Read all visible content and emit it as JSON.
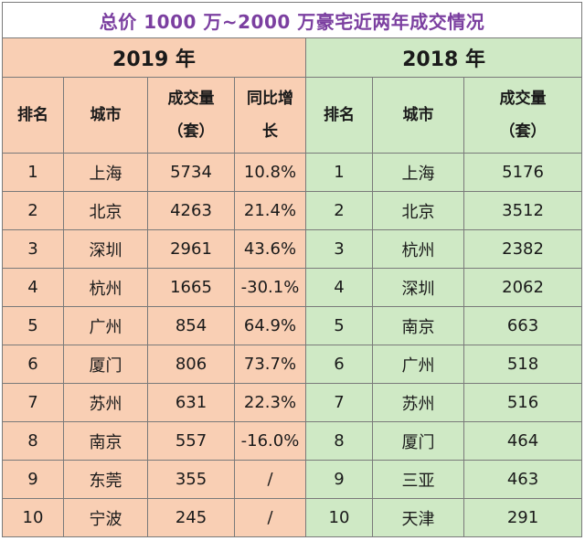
{
  "title": "总价 1000 万~2000 万豪宅近两年成交情况",
  "left": {
    "year": "2019 年",
    "headers": {
      "rank": "排名",
      "city": "城市",
      "volume_line1": "成交量",
      "volume_line2": "（套）",
      "yoy_line1": "同比增",
      "yoy_line2": "长"
    },
    "rows": [
      {
        "rank": "1",
        "city": "上海",
        "volume": "5734",
        "yoy": "10.8%"
      },
      {
        "rank": "2",
        "city": "北京",
        "volume": "4263",
        "yoy": "21.4%"
      },
      {
        "rank": "3",
        "city": "深圳",
        "volume": "2961",
        "yoy": "43.6%"
      },
      {
        "rank": "4",
        "city": "杭州",
        "volume": "1665",
        "yoy": "-30.1%"
      },
      {
        "rank": "5",
        "city": "广州",
        "volume": "854",
        "yoy": "64.9%"
      },
      {
        "rank": "6",
        "city": "厦门",
        "volume": "806",
        "yoy": "73.7%"
      },
      {
        "rank": "7",
        "city": "苏州",
        "volume": "631",
        "yoy": "22.3%"
      },
      {
        "rank": "8",
        "city": "南京",
        "volume": "557",
        "yoy": "-16.0%"
      },
      {
        "rank": "9",
        "city": "东莞",
        "volume": "355",
        "yoy": "/"
      },
      {
        "rank": "10",
        "city": "宁波",
        "volume": "245",
        "yoy": "/"
      }
    ]
  },
  "right": {
    "year": "2018 年",
    "headers": {
      "rank": "排名",
      "city": "城市",
      "volume_line1": "成交量",
      "volume_line2": "（套）"
    },
    "rows": [
      {
        "rank": "1",
        "city": "上海",
        "volume": "5176"
      },
      {
        "rank": "2",
        "city": "北京",
        "volume": "3512"
      },
      {
        "rank": "3",
        "city": "杭州",
        "volume": "2382"
      },
      {
        "rank": "4",
        "city": "深圳",
        "volume": "2062"
      },
      {
        "rank": "5",
        "city": "南京",
        "volume": "663"
      },
      {
        "rank": "6",
        "city": "广州",
        "volume": "518"
      },
      {
        "rank": "7",
        "city": "苏州",
        "volume": "516"
      },
      {
        "rank": "8",
        "city": "厦门",
        "volume": "464"
      },
      {
        "rank": "9",
        "city": "三亚",
        "volume": "463"
      },
      {
        "rank": "10",
        "city": "天津",
        "volume": "291"
      }
    ]
  },
  "colors": {
    "title_text": "#7b3fa0",
    "left_bg": "#f9cfb4",
    "right_bg": "#cfe9c5",
    "border": "#7a7a7a"
  }
}
